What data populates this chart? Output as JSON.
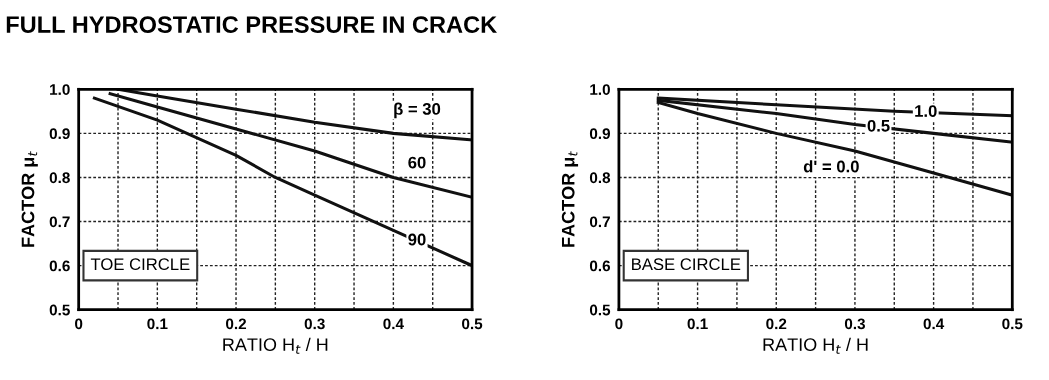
{
  "chart_data": [
    {
      "type": "line",
      "title": "FULL HYDROSTATIC PRESSURE IN CRACK",
      "xlabel": "RATIO H$_{t}$ / H",
      "ylabel": "FACTOR μ$_{t}$",
      "series": [
        {
          "name": "β = 30",
          "color": "#111111",
          "x": [
            0.05,
            0.1,
            0.2,
            0.3,
            0.4,
            0.5
          ],
          "values": [
            1.0,
            0.985,
            0.955,
            0.925,
            0.9,
            0.885
          ]
        },
        {
          "name": "60",
          "color": "#111111",
          "x": [
            0.04,
            0.1,
            0.2,
            0.3,
            0.4,
            0.5
          ],
          "values": [
            0.99,
            0.96,
            0.91,
            0.86,
            0.8,
            0.755
          ]
        },
        {
          "name": "90",
          "color": "#111111",
          "x": [
            0.02,
            0.1,
            0.2,
            0.25,
            0.3,
            0.4,
            0.5
          ],
          "values": [
            0.98,
            0.93,
            0.85,
            0.8,
            0.76,
            0.68,
            0.6
          ]
        }
      ],
      "annotations": [
        "TOE CIRCLE"
      ],
      "xlim": [
        0,
        0.5
      ],
      "ylim": [
        0.5,
        1.0
      ],
      "xticks": [
        0,
        {
          "value": 0.05,
          "label": null
        },
        0.1,
        {
          "value": 0.15,
          "label": null
        },
        0.2,
        {
          "value": 0.25,
          "label": null
        },
        0.3,
        {
          "value": 0.35,
          "label": null
        },
        0.4,
        {
          "value": 0.45,
          "label": null
        },
        0.5
      ],
      "yticks": [
        0.5,
        0.6,
        0.7,
        0.8,
        0.9,
        {
          "value": 1,
          "label": "1.0"
        }
      ],
      "grid": true,
      "line_style": "solid",
      "marker": "none"
    },
    {
      "type": "line",
      "xlabel": "RATIO H$_{t}$ / H",
      "ylabel": "FACTOR μ$_{t}$",
      "series": [
        {
          "name": "1.0",
          "color": "#111111",
          "x": [
            0.05,
            0.2,
            0.35,
            0.5
          ],
          "values": [
            0.98,
            0.965,
            0.95,
            0.94
          ]
        },
        {
          "name": "0.5",
          "color": "#111111",
          "x": [
            0.05,
            0.2,
            0.3,
            0.4,
            0.5
          ],
          "values": [
            0.975,
            0.945,
            0.92,
            0.9,
            0.88
          ]
        },
        {
          "name": "d' = 0.0",
          "color": "#111111",
          "x": [
            0.05,
            0.1,
            0.2,
            0.3,
            0.4,
            0.5
          ],
          "values": [
            0.97,
            0.945,
            0.9,
            0.86,
            0.81,
            0.76
          ]
        }
      ],
      "annotations": [
        "BASE CIRCLE"
      ],
      "xlim": [
        0,
        0.5
      ],
      "ylim": [
        0.5,
        1.0
      ],
      "xticks": [
        0,
        {
          "value": 0.05,
          "label": null
        },
        0.1,
        {
          "value": 0.15,
          "label": null
        },
        0.2,
        {
          "value": 0.25,
          "label": null
        },
        0.3,
        {
          "value": 0.35,
          "label": null
        },
        0.4,
        {
          "value": 0.45,
          "label": null
        },
        0.5
      ],
      "yticks": [
        0.5,
        0.6,
        0.7,
        0.8,
        0.9,
        {
          "value": 1,
          "label": "1.0"
        }
      ],
      "grid": true,
      "line_style": "solid",
      "marker": "none"
    }
  ]
}
